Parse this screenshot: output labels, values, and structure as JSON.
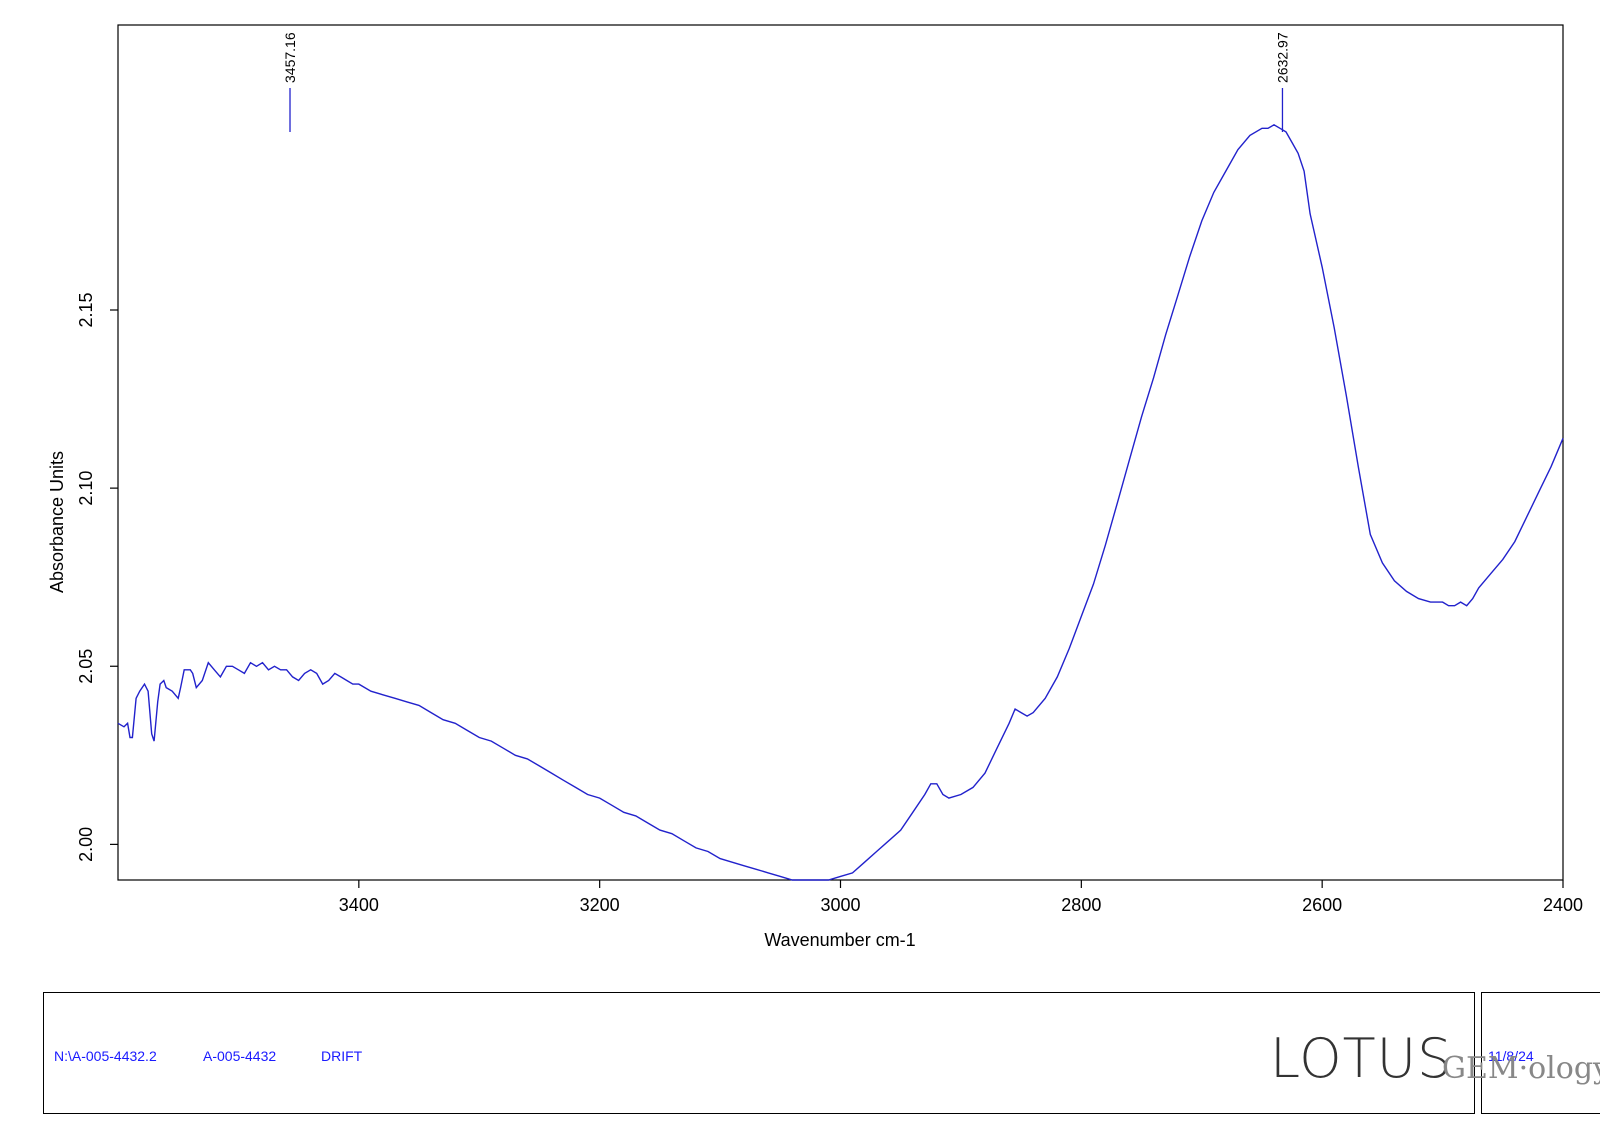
{
  "chart_data": {
    "type": "line",
    "title": "",
    "xlabel": "Wavenumber cm-1",
    "ylabel": "Absorbance Units",
    "xlim": [
      3600,
      2400
    ],
    "ylim": [
      1.99,
      2.23
    ],
    "x_reversed": true,
    "x_ticks": [
      3400,
      3200,
      3000,
      2800,
      2600,
      2400
    ],
    "y_ticks": [
      2.0,
      2.05,
      2.1,
      2.15
    ],
    "x_tick_labels": [
      "3400",
      "3200",
      "3000",
      "2800",
      "2600",
      "2400"
    ],
    "y_tick_labels": [
      "2.00",
      "2.05",
      "2.10",
      "2.15"
    ],
    "grid": false,
    "line_color": "#2222cc",
    "series": [
      {
        "x": [
          3600,
          3595,
          3592,
          3590,
          3588,
          3585,
          3582,
          3578,
          3575,
          3572,
          3570,
          3567,
          3565,
          3562,
          3560,
          3555,
          3550,
          3548,
          3545,
          3540,
          3538,
          3535,
          3530,
          3525,
          3520,
          3515,
          3510,
          3505,
          3500,
          3495,
          3490,
          3485,
          3480,
          3475,
          3470,
          3465,
          3460,
          3455,
          3450,
          3445,
          3440,
          3435,
          3430,
          3425,
          3420,
          3415,
          3410,
          3405,
          3400,
          3390,
          3380,
          3370,
          3360,
          3350,
          3340,
          3330,
          3320,
          3310,
          3300,
          3290,
          3280,
          3270,
          3260,
          3250,
          3240,
          3230,
          3220,
          3210,
          3200,
          3190,
          3180,
          3170,
          3160,
          3150,
          3140,
          3130,
          3120,
          3110,
          3100,
          3090,
          3080,
          3070,
          3060,
          3050,
          3040,
          3030,
          3020,
          3010,
          3000,
          2990,
          2980,
          2970,
          2960,
          2950,
          2940,
          2930,
          2925,
          2920,
          2915,
          2910,
          2900,
          2890,
          2880,
          2870,
          2860,
          2855,
          2850,
          2845,
          2840,
          2830,
          2820,
          2810,
          2800,
          2790,
          2780,
          2770,
          2760,
          2750,
          2740,
          2730,
          2720,
          2710,
          2700,
          2690,
          2680,
          2670,
          2660,
          2650,
          2645,
          2640,
          2635,
          2630,
          2625,
          2620,
          2615,
          2610,
          2600,
          2590,
          2580,
          2570,
          2560,
          2550,
          2540,
          2530,
          2520,
          2510,
          2500,
          2495,
          2490,
          2485,
          2480,
          2475,
          2470,
          2460,
          2450,
          2440,
          2430,
          2420,
          2410,
          2400
        ],
        "y": [
          2.034,
          2.033,
          2.034,
          2.03,
          2.03,
          2.041,
          2.043,
          2.045,
          2.043,
          2.031,
          2.029,
          2.04,
          2.045,
          2.046,
          2.044,
          2.043,
          2.041,
          2.044,
          2.049,
          2.049,
          2.048,
          2.044,
          2.046,
          2.051,
          2.049,
          2.047,
          2.05,
          2.05,
          2.049,
          2.048,
          2.051,
          2.05,
          2.051,
          2.049,
          2.05,
          2.049,
          2.049,
          2.047,
          2.046,
          2.048,
          2.049,
          2.048,
          2.045,
          2.046,
          2.048,
          2.047,
          2.046,
          2.045,
          2.045,
          2.043,
          2.042,
          2.041,
          2.04,
          2.039,
          2.037,
          2.035,
          2.034,
          2.032,
          2.03,
          2.029,
          2.027,
          2.025,
          2.024,
          2.022,
          2.02,
          2.018,
          2.016,
          2.014,
          2.013,
          2.011,
          2.009,
          2.008,
          2.006,
          2.004,
          2.003,
          2.001,
          1.999,
          1.998,
          1.996,
          1.995,
          1.994,
          1.993,
          1.992,
          1.991,
          1.99,
          1.99,
          1.99,
          1.99,
          1.991,
          1.992,
          1.995,
          1.998,
          2.001,
          2.004,
          2.009,
          2.014,
          2.017,
          2.017,
          2.014,
          2.013,
          2.014,
          2.016,
          2.02,
          2.027,
          2.034,
          2.038,
          2.037,
          2.036,
          2.037,
          2.041,
          2.047,
          2.055,
          2.064,
          2.073,
          2.084,
          2.096,
          2.108,
          2.12,
          2.131,
          2.143,
          2.154,
          2.165,
          2.175,
          2.183,
          2.189,
          2.195,
          2.199,
          2.201,
          2.201,
          2.202,
          2.201,
          2.2,
          2.197,
          2.194,
          2.189,
          2.177,
          2.162,
          2.145,
          2.126,
          2.106,
          2.087,
          2.079,
          2.074,
          2.071,
          2.069,
          2.068,
          2.068,
          2.067,
          2.067,
          2.068,
          2.067,
          2.069,
          2.072,
          2.076,
          2.08,
          2.085,
          2.092,
          2.099,
          2.106,
          2.114
        ]
      }
    ],
    "peaks": [
      {
        "x": 3457.16,
        "label": "3457.16"
      },
      {
        "x": 2632.97,
        "label": "2632.97"
      }
    ]
  },
  "footer": {
    "file_path": "N:\\A-005-4432.2",
    "sample_id": "A-005-4432",
    "method": "DRIFT",
    "date": "11/8/24",
    "logo_main": "LOTUS",
    "logo_sub": "GEM·ology"
  }
}
